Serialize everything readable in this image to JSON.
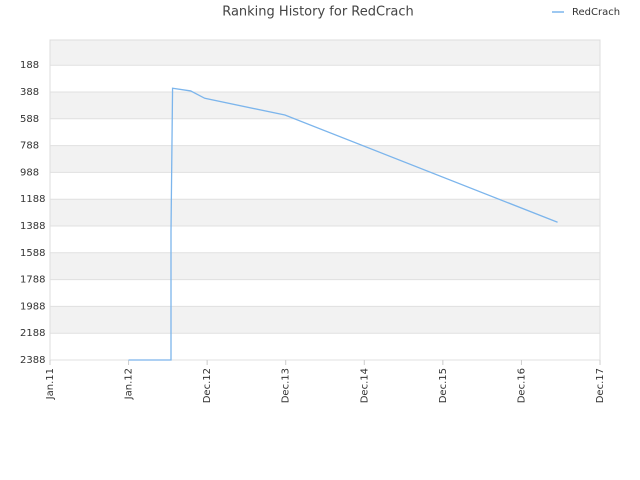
{
  "chart_data": {
    "type": "line",
    "title": "Ranking History for RedCrach",
    "series": [
      {
        "name": "RedCrach",
        "color": "#7cb5ec",
        "x": [
          1.0,
          1.54,
          1.54,
          1.56,
          1.79,
          1.97,
          2.99,
          6.46
        ],
        "values": [
          2388,
          2388,
          1430,
          360,
          380,
          435,
          560,
          1360
        ]
      }
    ],
    "xlim": [
      0,
      7
    ],
    "xticks": [
      {
        "value": 0,
        "label": "Jan.11"
      },
      {
        "value": 1,
        "label": "Jan.12"
      },
      {
        "value": 2,
        "label": "Dec.12"
      },
      {
        "value": 3,
        "label": "Dec.13"
      },
      {
        "value": 4,
        "label": "Dec.14"
      },
      {
        "value": 5,
        "label": "Dec.15"
      },
      {
        "value": 6,
        "label": "Dec.16"
      },
      {
        "value": 7,
        "label": "Dec.17"
      }
    ],
    "ylim": [
      0,
      2388
    ],
    "y_reversed": true,
    "yticks": [
      188,
      388,
      588,
      788,
      988,
      1188,
      1388,
      1588,
      1788,
      1988,
      2188,
      2388
    ],
    "grid": true,
    "legend": "top-right"
  }
}
